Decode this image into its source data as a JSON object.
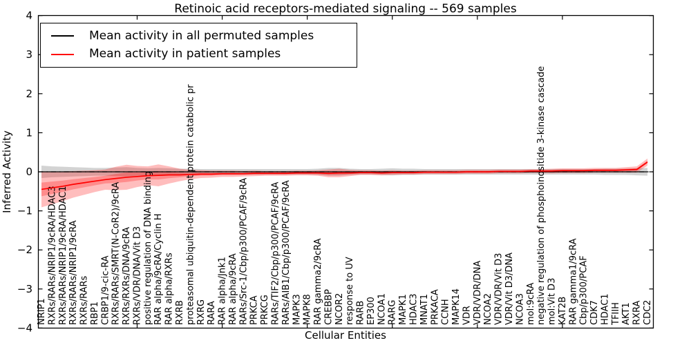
{
  "title": "Retinoic acid receptors-mediated signaling -- 569 samples",
  "legend": {
    "items": [
      {
        "label": "Mean activity in all permuted samples",
        "color": "#000000"
      },
      {
        "label": "Mean activity in patient samples",
        "color": "#ff0000"
      }
    ],
    "position": "upper left"
  },
  "chart_data": {
    "type": "line",
    "title": "Retinoic acid receptors-mediated signaling -- 569 samples",
    "xlabel": "Cellular Entities",
    "ylabel": "Inferred Activity",
    "ylim": [
      -4,
      4
    ],
    "grid": false,
    "legend_position": "upper left",
    "yticks": [
      {
        "v": 4,
        "label": "4"
      },
      {
        "v": 3,
        "label": "3"
      },
      {
        "v": 2,
        "label": "2"
      },
      {
        "v": 1,
        "label": "1"
      },
      {
        "v": 0,
        "label": "0"
      },
      {
        "v": -1,
        "label": "−1"
      },
      {
        "v": -2,
        "label": "−2"
      },
      {
        "v": -3,
        "label": "−3"
      },
      {
        "v": -4,
        "label": "−4"
      }
    ],
    "xtick_indices": [
      9,
      17,
      25,
      33,
      41,
      49
    ],
    "zero_line": {
      "y": 0,
      "style": "dash-dot",
      "color": "#000000"
    },
    "categories": [
      "NRIP1",
      "RXRs/RARs/NRIP1/9cRA/HDAC3",
      "RXRs/RARs/NRIP1/9cRA/HDAC1",
      "RXRs/RARs/NRIP1/9cRA",
      "RXRs/RARs",
      "RBP1",
      "CRBP1/9-cic-RA",
      "RXRs/RARs/SMRT(N-CoR2)/9cRA",
      "RXRs/RXRs/DNA/9cRA",
      "RXRs/VDR/DNA/Vit D3",
      "positive regulation of DNA binding",
      "RAR alpha/9cRA/Cyclin H",
      "RAR alpha/RXRs",
      "RXRB",
      "proteasomal ubiquitin-dependent protein catabolic pr",
      "RXRG",
      "RARA",
      "RAR alpha/Jnk1",
      "RAR alpha/9cRA",
      "RARs/Src-1/Cbp/p300/PCAF/9cRA",
      "PRKCA",
      "PRKCG",
      "RARs/TIF2/Cbp/p300/PCAF/9cRA",
      "RARs/AIB1/Cbp/p300/PCAF/9cRA",
      "MAPK3",
      "MAPK8",
      "RAR gamma2/9cRA",
      "CREBBP",
      "NCOR2",
      "response to UV",
      "RARB",
      "EP300",
      "NCOA1",
      "RARG",
      "MAPK1",
      "HDAC3",
      "MNAT1",
      "PRKACA",
      "CCNH",
      "MAPK14",
      "VDR",
      "VDR/VDR/DNA",
      "NCOA2",
      "VDR/VDR/Vit D3",
      "VDR/Vit D3/DNA",
      "NCOA3",
      "mol:9cRA",
      "negative regulation of phosphoinositide 3-kinase cascade",
      "mol:Vit D3",
      "KAT2B",
      "RAR gamma1/9cRA",
      "Cbp/p300/PCAF",
      "CDK7",
      "HDAC1",
      "TFIIH",
      "AKT1",
      "RXRA",
      "CDC2"
    ],
    "series": [
      {
        "name": "Mean activity in all permuted samples",
        "color": "#000000",
        "band_color": "rgba(110,110,110,0.30)",
        "values": [
          0,
          0,
          0,
          0,
          0,
          0,
          0,
          0,
          0,
          0,
          0,
          0,
          0,
          0,
          0,
          0,
          0,
          0,
          0,
          0,
          0,
          0,
          0,
          0,
          0,
          0,
          0,
          0,
          0,
          0,
          0,
          0,
          0,
          0,
          0,
          0,
          0,
          0,
          0,
          0,
          0,
          0,
          0,
          0,
          0,
          0,
          0,
          0,
          0,
          0,
          0,
          0,
          0,
          0,
          0,
          0,
          0,
          0
        ],
        "band_halfwidth": [
          0.16,
          0.14,
          0.13,
          0.12,
          0.11,
          0.1,
          0.1,
          0.11,
          0.12,
          0.1,
          0.09,
          0.1,
          0.09,
          0.08,
          0.08,
          0.07,
          0.07,
          0.07,
          0.07,
          0.07,
          0.07,
          0.07,
          0.07,
          0.07,
          0.07,
          0.07,
          0.08,
          0.1,
          0.1,
          0.08,
          0.07,
          0.07,
          0.08,
          0.09,
          0.08,
          0.08,
          0.07,
          0.07,
          0.07,
          0.07,
          0.07,
          0.07,
          0.07,
          0.07,
          0.07,
          0.07,
          0.07,
          0.07,
          0.07,
          0.07,
          0.07,
          0.07,
          0.07,
          0.08,
          0.08,
          0.08,
          0.09,
          0.1
        ]
      },
      {
        "name": "Mean activity in patient samples",
        "color": "#ff0000",
        "band_color": "rgba(255,0,0,0.26)",
        "values": [
          -0.45,
          -0.41,
          -0.37,
          -0.32,
          -0.28,
          -0.24,
          -0.2,
          -0.17,
          -0.14,
          -0.12,
          -0.1,
          -0.09,
          -0.08,
          -0.08,
          -0.07,
          -0.06,
          -0.06,
          -0.05,
          -0.05,
          -0.05,
          -0.04,
          -0.04,
          -0.04,
          -0.04,
          -0.03,
          -0.03,
          -0.03,
          -0.04,
          -0.03,
          -0.03,
          -0.02,
          -0.02,
          -0.03,
          -0.02,
          -0.02,
          -0.02,
          -0.01,
          -0.01,
          -0.01,
          -0.01,
          0.0,
          0.0,
          0.0,
          0.01,
          0.01,
          0.01,
          0.02,
          0.02,
          0.02,
          0.03,
          0.03,
          0.03,
          0.04,
          0.04,
          0.04,
          0.05,
          0.06,
          0.25
        ],
        "band_halfwidth": [
          0.46,
          0.42,
          0.38,
          0.34,
          0.31,
          0.28,
          0.26,
          0.3,
          0.32,
          0.27,
          0.24,
          0.28,
          0.22,
          0.16,
          0.12,
          0.1,
          0.09,
          0.08,
          0.08,
          0.07,
          0.07,
          0.06,
          0.06,
          0.06,
          0.06,
          0.06,
          0.07,
          0.1,
          0.11,
          0.08,
          0.06,
          0.06,
          0.06,
          0.06,
          0.05,
          0.05,
          0.05,
          0.05,
          0.05,
          0.05,
          0.05,
          0.05,
          0.05,
          0.05,
          0.05,
          0.05,
          0.05,
          0.05,
          0.06,
          0.06,
          0.06,
          0.06,
          0.06,
          0.06,
          0.06,
          0.07,
          0.08,
          0.09
        ]
      }
    ]
  }
}
